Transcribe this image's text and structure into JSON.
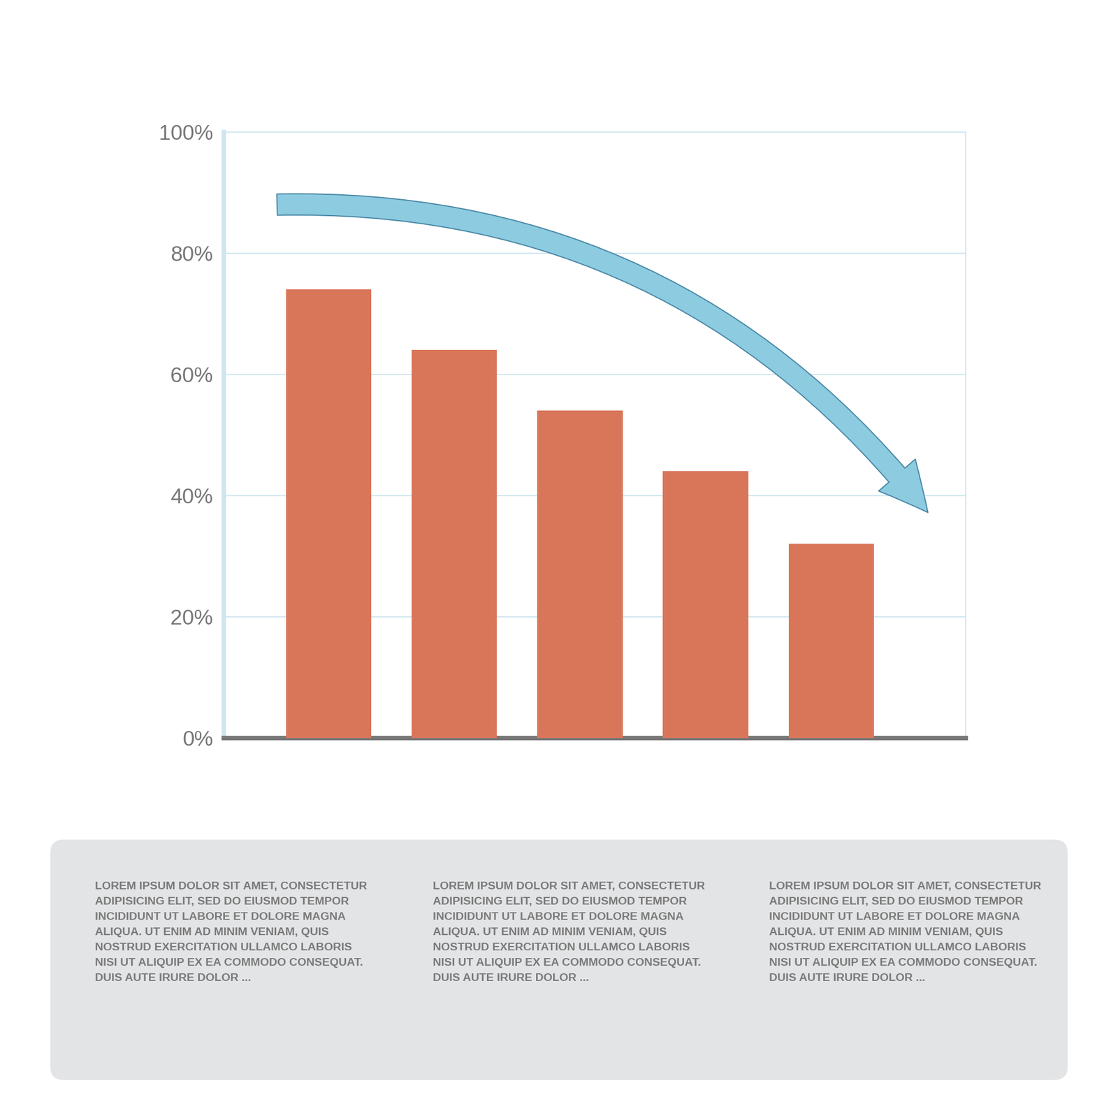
{
  "chart_data": {
    "type": "bar",
    "categories": [
      null,
      null,
      null,
      null,
      null
    ],
    "values": [
      74,
      64,
      54,
      44,
      32
    ],
    "color": "#d9765a",
    "ylim": [
      0,
      100
    ],
    "yticks": [
      {
        "value": 0,
        "label": "0%"
      },
      {
        "value": 20,
        "label": "20%"
      },
      {
        "value": 40,
        "label": "40%"
      },
      {
        "value": 60,
        "label": "60%"
      },
      {
        "value": 80,
        "label": "80%"
      },
      {
        "value": 100,
        "label": "100%"
      }
    ],
    "grid": true,
    "tick_labels": "y",
    "annotations": [
      "LOREM IPSUM DOLOR SIT AMET, CONSECTETUR\nADIPISICING ELIT, SED DO EIUSMOD TEMPOR\nINCIDIDUNT UT LABORE ET DOLORE MAGNA\nALIQUA. UT ENIM AD MINIM VENIAM, QUIS\nNOSTRUD EXERCITATION ULLAMCO LABORIS\nNISI UT ALIQUIP EX EA COMMODO CONSEQUAT.\nDUIS AUTE IRURE DOLOR ...",
      "LOREM IPSUM DOLOR SIT AMET, CONSECTETUR\nADIPISICING ELIT, SED DO EIUSMOD TEMPOR\nINCIDIDUNT UT LABORE ET DOLORE MAGNA\nALIQUA. UT ENIM AD MINIM VENIAM, QUIS\nNOSTRUD EXERCITATION ULLAMCO LABORIS\nNISI UT ALIQUIP EX EA COMMODO CONSEQUAT.\nDUIS AUTE IRURE DOLOR ...",
      "LOREM IPSUM DOLOR SIT AMET, CONSECTETUR\nADIPISICING ELIT, SED DO EIUSMOD TEMPOR\nINCIDIDUNT UT LABORE ET DOLORE MAGNA\nALIQUA. UT ENIM AD MINIM VENIAM, QUIS\nNOSTRUD EXERCITATION ULLAMCO LABORIS\nNISI UT ALIQUIP EX EA COMMODO CONSEQUAT.\nDUIS AUTE IRURE DOLOR ..."
    ]
  }
}
